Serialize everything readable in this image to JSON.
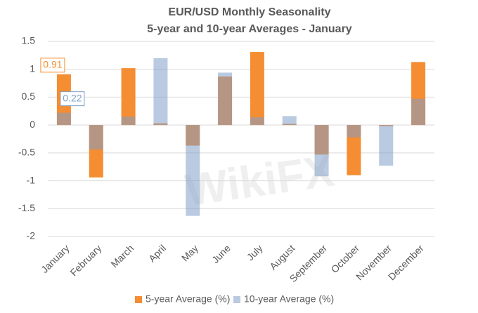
{
  "chart_data": {
    "type": "bar",
    "title": "EUR/USD Monthly Seasonality",
    "subtitle": "5-year and 10-year Averages - January",
    "watermark": "WikiFX",
    "categories": [
      "January",
      "February",
      "March",
      "April",
      "May",
      "June",
      "July",
      "August",
      "September",
      "October",
      "November",
      "December"
    ],
    "series": [
      {
        "name": "5-year Average (%)",
        "color": "#f58d32",
        "values": [
          0.91,
          -0.94,
          1.02,
          0.03,
          -0.37,
          0.87,
          1.31,
          0.02,
          -0.53,
          -0.9,
          -0.02,
          1.13
        ]
      },
      {
        "name": "10-year Average (%)",
        "color": "#7f9fc9",
        "values": [
          0.22,
          -0.44,
          0.15,
          1.2,
          -1.63,
          0.94,
          0.14,
          0.16,
          -0.92,
          -0.22,
          -0.73,
          0.47
        ]
      }
    ],
    "ylim": [
      -2,
      1.5
    ],
    "yticks": [
      -2,
      -1.5,
      -1,
      -0.5,
      0,
      0.5,
      1,
      1.5
    ],
    "grid": true
  }
}
